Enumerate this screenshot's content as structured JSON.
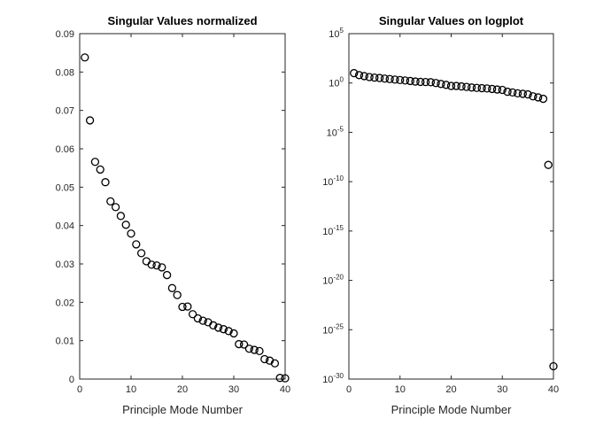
{
  "chart_data": [
    {
      "type": "scatter",
      "title": "Singular Values normalized",
      "xlabel": "Principle Mode Number",
      "ylabel": "",
      "xlim": [
        0,
        40
      ],
      "ylim": [
        0,
        0.09
      ],
      "xticks": [
        "0",
        "10",
        "20",
        "30",
        "40"
      ],
      "yticks": [
        "0",
        "0.01",
        "0.02",
        "0.03",
        "0.04",
        "0.05",
        "0.06",
        "0.07",
        "0.08",
        "0.09"
      ],
      "grid": false,
      "series": [
        {
          "x": [
            1,
            2,
            3,
            4,
            5,
            6,
            7,
            8,
            9,
            10,
            11,
            12,
            13,
            14,
            15,
            16,
            17,
            18,
            19,
            20,
            21,
            22,
            23,
            24,
            25,
            26,
            27,
            28,
            29,
            30,
            31,
            32,
            33,
            34,
            35,
            36,
            37,
            38,
            39,
            40
          ],
          "values": [
            0.0838,
            0.0674,
            0.0566,
            0.0546,
            0.0513,
            0.0463,
            0.0448,
            0.0425,
            0.0402,
            0.0379,
            0.0351,
            0.0328,
            0.0307,
            0.0298,
            0.0296,
            0.0291,
            0.0271,
            0.0237,
            0.0219,
            0.0188,
            0.0189,
            0.0169,
            0.0158,
            0.0152,
            0.0148,
            0.014,
            0.0134,
            0.013,
            0.0125,
            0.0119,
            0.0091,
            0.009,
            0.0079,
            0.0076,
            0.0073,
            0.0052,
            0.0048,
            0.0041,
            0.0003,
            0.0002
          ]
        }
      ]
    },
    {
      "type": "scatter",
      "title": "Singular Values on logplot",
      "xlabel": "Principle Mode Number",
      "ylabel": "",
      "xlim": [
        0,
        40
      ],
      "yscale": "log",
      "ylim": [
        1e-30,
        100000.0
      ],
      "xticks": [
        "0",
        "10",
        "20",
        "30",
        "40"
      ],
      "yticks": [
        {
          "base": "10",
          "exp": "5",
          "value": 100000.0
        },
        {
          "base": "10",
          "exp": "0",
          "value": 1
        },
        {
          "base": "10",
          "exp": "-5",
          "value": 1e-05
        },
        {
          "base": "10",
          "exp": "-10",
          "value": 1e-10
        },
        {
          "base": "10",
          "exp": "-15",
          "value": 1e-15
        },
        {
          "base": "10",
          "exp": "-20",
          "value": 1e-20
        },
        {
          "base": "10",
          "exp": "-25",
          "value": 1e-25
        },
        {
          "base": "10",
          "exp": "-30",
          "value": 1e-30
        }
      ],
      "grid": false,
      "series": [
        {
          "x": [
            1,
            2,
            3,
            4,
            5,
            6,
            7,
            8,
            9,
            10,
            11,
            12,
            13,
            14,
            15,
            16,
            17,
            18,
            19,
            20,
            21,
            22,
            23,
            24,
            25,
            26,
            27,
            28,
            29,
            30,
            31,
            32,
            33,
            34,
            35,
            36,
            37,
            38,
            39,
            40
          ],
          "values": [
            10.0,
            6.3,
            5.0,
            4.0,
            3.5,
            3.2,
            2.8,
            2.5,
            2.2,
            2.0,
            1.8,
            1.6,
            1.4,
            1.3,
            1.25,
            1.2,
            1.0,
            0.8,
            0.65,
            0.5,
            0.5,
            0.45,
            0.4,
            0.35,
            0.32,
            0.3,
            0.28,
            0.25,
            0.22,
            0.2,
            0.13,
            0.11,
            0.09,
            0.08,
            0.07,
            0.045,
            0.035,
            0.025,
            5e-09,
            2e-29
          ]
        }
      ]
    }
  ]
}
